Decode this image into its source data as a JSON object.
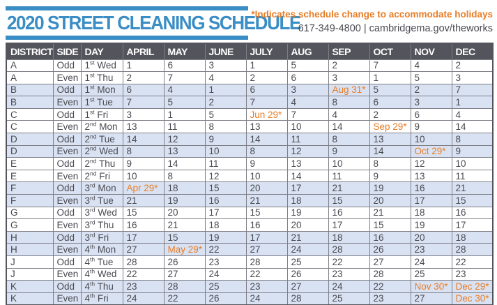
{
  "header": {
    "title": "2020 STREET CLEANING SCHEDULE",
    "note": "*Indicates schedule change to accommodate holidays",
    "contact": "617-349-4800 | cambridgema.gov/theworks"
  },
  "colors": {
    "accent_blue": "#3A8DC5",
    "accent_orange": "#E87D25",
    "table_header_bg": "#54545C",
    "alt_row_bg": "#D9E2F2",
    "body_text": "#4A4A52"
  },
  "table": {
    "columns": [
      "DISTRICT",
      "SIDE",
      "DAY",
      "APRIL",
      "MAY",
      "JUNE",
      "JULY",
      "AUG",
      "SEP",
      "OCT",
      "NOV",
      "DEC"
    ],
    "rows": [
      {
        "district": "A",
        "side": "Odd",
        "day": "1st Wed",
        "months": [
          "1",
          "6",
          "3",
          "1",
          "5",
          "2",
          "7",
          "4",
          "2"
        ]
      },
      {
        "district": "A",
        "side": "Even",
        "day": "1st Thu",
        "months": [
          "2",
          "7",
          "4",
          "2",
          "6",
          "3",
          "1",
          "5",
          "3"
        ]
      },
      {
        "district": "B",
        "side": "Odd",
        "day": "1st Mon",
        "months": [
          "6",
          "4",
          "1",
          "6",
          "3",
          "Aug 31*",
          "5",
          "2",
          "7"
        ]
      },
      {
        "district": "B",
        "side": "Even",
        "day": "1st Tue",
        "months": [
          "7",
          "5",
          "2",
          "7",
          "4",
          "8",
          "6",
          "3",
          "1"
        ]
      },
      {
        "district": "C",
        "side": "Odd",
        "day": "1st Fri",
        "months": [
          "3",
          "1",
          "5",
          "Jun 29*",
          "7",
          "4",
          "2",
          "6",
          "4"
        ]
      },
      {
        "district": "C",
        "side": "Even",
        "day": "2nd Mon",
        "months": [
          "13",
          "11",
          "8",
          "13",
          "10",
          "14",
          "Sep 29*",
          "9",
          "14"
        ]
      },
      {
        "district": "D",
        "side": "Odd",
        "day": "2nd Tue",
        "months": [
          "14",
          "12",
          "9",
          "14",
          "11",
          "8",
          "13",
          "10",
          "8"
        ]
      },
      {
        "district": "D",
        "side": "Even",
        "day": "2nd Wed",
        "months": [
          "8",
          "13",
          "10",
          "8",
          "12",
          "9",
          "14",
          "Oct 29*",
          "9"
        ]
      },
      {
        "district": "E",
        "side": "Odd",
        "day": "2nd Thu",
        "months": [
          "9",
          "14",
          "11",
          "9",
          "13",
          "10",
          "8",
          "12",
          "10"
        ]
      },
      {
        "district": "E",
        "side": "Even",
        "day": "2nd Fri",
        "months": [
          "10",
          "8",
          "12",
          "10",
          "14",
          "11",
          "9",
          "13",
          "11"
        ]
      },
      {
        "district": "F",
        "side": "Odd",
        "day": "3rd Mon",
        "months": [
          "Apr 29*",
          "18",
          "15",
          "20",
          "17",
          "21",
          "19",
          "16",
          "21"
        ]
      },
      {
        "district": "F",
        "side": "Even",
        "day": "3rd Tue",
        "months": [
          "21",
          "19",
          "16",
          "21",
          "18",
          "15",
          "20",
          "17",
          "15"
        ]
      },
      {
        "district": "G",
        "side": "Odd",
        "day": "3rd Wed",
        "months": [
          "15",
          "20",
          "17",
          "15",
          "19",
          "16",
          "21",
          "18",
          "16"
        ]
      },
      {
        "district": "G",
        "side": "Even",
        "day": "3rd Thu",
        "months": [
          "16",
          "21",
          "18",
          "16",
          "20",
          "17",
          "15",
          "19",
          "17"
        ]
      },
      {
        "district": "H",
        "side": "Odd",
        "day": "3rd Fri",
        "months": [
          "17",
          "15",
          "19",
          "17",
          "21",
          "18",
          "16",
          "20",
          "18"
        ]
      },
      {
        "district": "H",
        "side": "Even",
        "day": "4th Mon",
        "months": [
          "27",
          "May 29*",
          "22",
          "27",
          "24",
          "28",
          "26",
          "23",
          "28"
        ]
      },
      {
        "district": "J",
        "side": "Odd",
        "day": "4th Tue",
        "months": [
          "28",
          "26",
          "23",
          "28",
          "25",
          "22",
          "27",
          "24",
          "22"
        ]
      },
      {
        "district": "J",
        "side": "Even",
        "day": "4th Wed",
        "months": [
          "22",
          "27",
          "24",
          "22",
          "26",
          "23",
          "28",
          "25",
          "23"
        ]
      },
      {
        "district": "K",
        "side": "Odd",
        "day": "4th Thu",
        "months": [
          "23",
          "28",
          "25",
          "23",
          "27",
          "24",
          "22",
          "Nov 30*",
          "Dec 29*"
        ]
      },
      {
        "district": "K",
        "side": "Even",
        "day": "4th Fri",
        "months": [
          "24",
          "22",
          "26",
          "24",
          "28",
          "25",
          "23",
          "27",
          "Dec 30*"
        ]
      }
    ]
  }
}
